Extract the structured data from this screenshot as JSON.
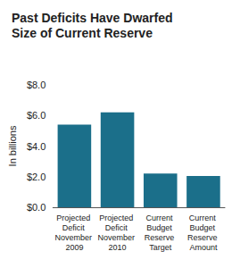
{
  "chart_data": {
    "type": "bar",
    "title": "Past Deficits Have Dwarfed Size of Current Reserve",
    "y_label": "In billions",
    "categories": [
      "Projected Deficit November 2009",
      "Projected Deficit November 2010",
      "Current Budget Reserve Target",
      "Current Budget Reserve Amount"
    ],
    "values": [
      5.4,
      6.2,
      2.2,
      2.05
    ],
    "color": "#1b6f8a",
    "ylim": [
      0,
      8
    ],
    "yticks": [
      {
        "value": 0,
        "label": "$0.0"
      },
      {
        "value": 2,
        "label": "$2.0"
      },
      {
        "value": 4,
        "label": "$4.0"
      },
      {
        "value": 6,
        "label": "$6.0"
      },
      {
        "value": 8,
        "label": "$8.0"
      }
    ],
    "grid": false
  }
}
